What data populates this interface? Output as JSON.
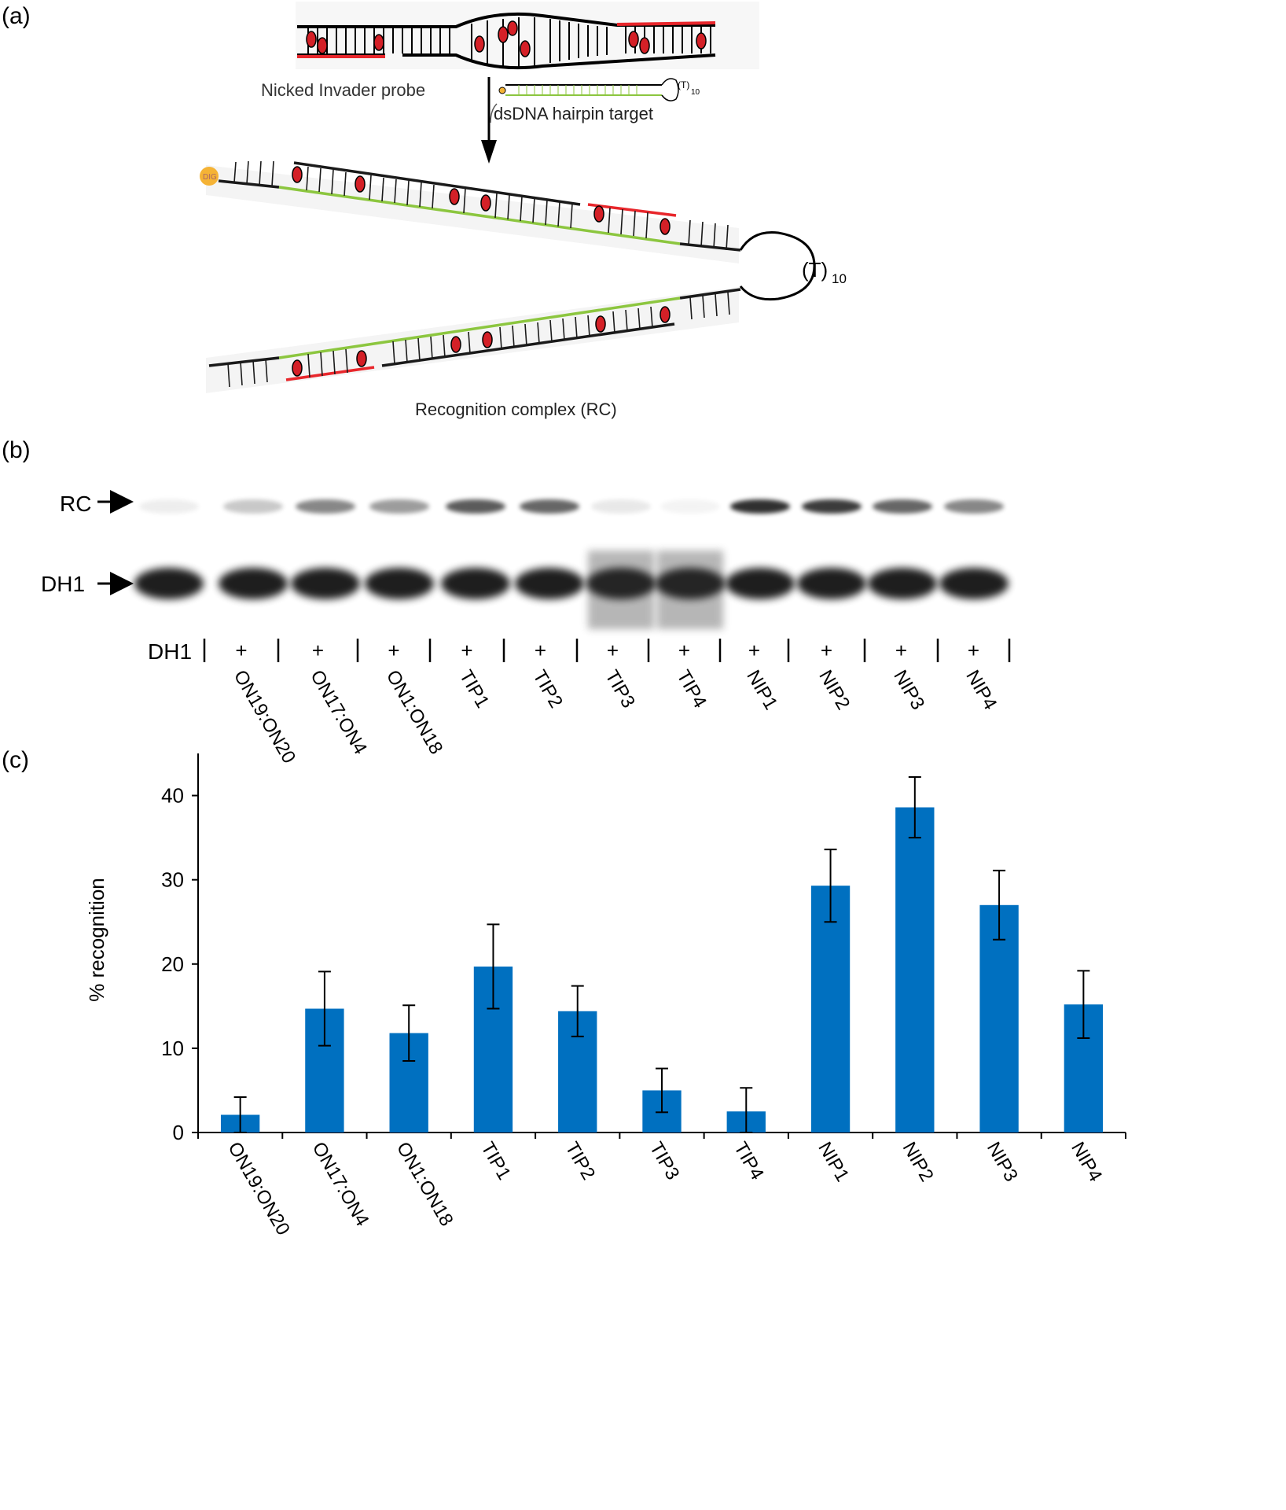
{
  "panels": {
    "a": "(a)",
    "b": "(b)",
    "c": "(c)"
  },
  "scheme": {
    "probe_label": "Nicked Invader probe",
    "target_label": "dsDNA hairpin target",
    "target_loop_label": "(T)",
    "target_loop_sub": "10",
    "loop_label": "(T)",
    "loop_sub": "10",
    "complex_label": "Recognition complex (RC)",
    "dig_label": "DIG",
    "colors": {
      "probe_strand": "#e8262b",
      "target_strand": "#8cc63f",
      "backbone": "#1a1a1a",
      "label": "#f5b335",
      "intercalator": "#d42027"
    }
  },
  "gel": {
    "rc_label": "RC",
    "dh1_label": "DH1",
    "row_label": "DH1",
    "plus": "+",
    "lanes": [
      "",
      "ON19:ON20",
      "ON17:ON4",
      "ON1:ON18",
      "TIP1",
      "TIP2",
      "TIP3",
      "TIP4",
      "NIP1",
      "NIP2",
      "NIP3",
      "NIP4"
    ]
  },
  "chart_data": {
    "type": "bar",
    "categories": [
      "ON19:ON20",
      "ON17:ON4",
      "ON1:ON18",
      "TIP1",
      "TIP2",
      "TIP3",
      "TIP4",
      "NIP1",
      "NIP2",
      "NIP3",
      "NIP4"
    ],
    "values": [
      2.1,
      14.7,
      11.8,
      19.7,
      14.4,
      5.0,
      2.5,
      29.3,
      38.6,
      27.0,
      15.2
    ],
    "errors": [
      2.1,
      4.4,
      3.3,
      5.0,
      3.0,
      2.6,
      2.8,
      4.3,
      3.6,
      4.1,
      4.0
    ],
    "ylabel": "% recognition",
    "xlabel": "",
    "ylim": [
      0,
      45
    ],
    "yticks": [
      0,
      10,
      20,
      30,
      40
    ],
    "bar_color": "#0070c0",
    "grid": false
  }
}
